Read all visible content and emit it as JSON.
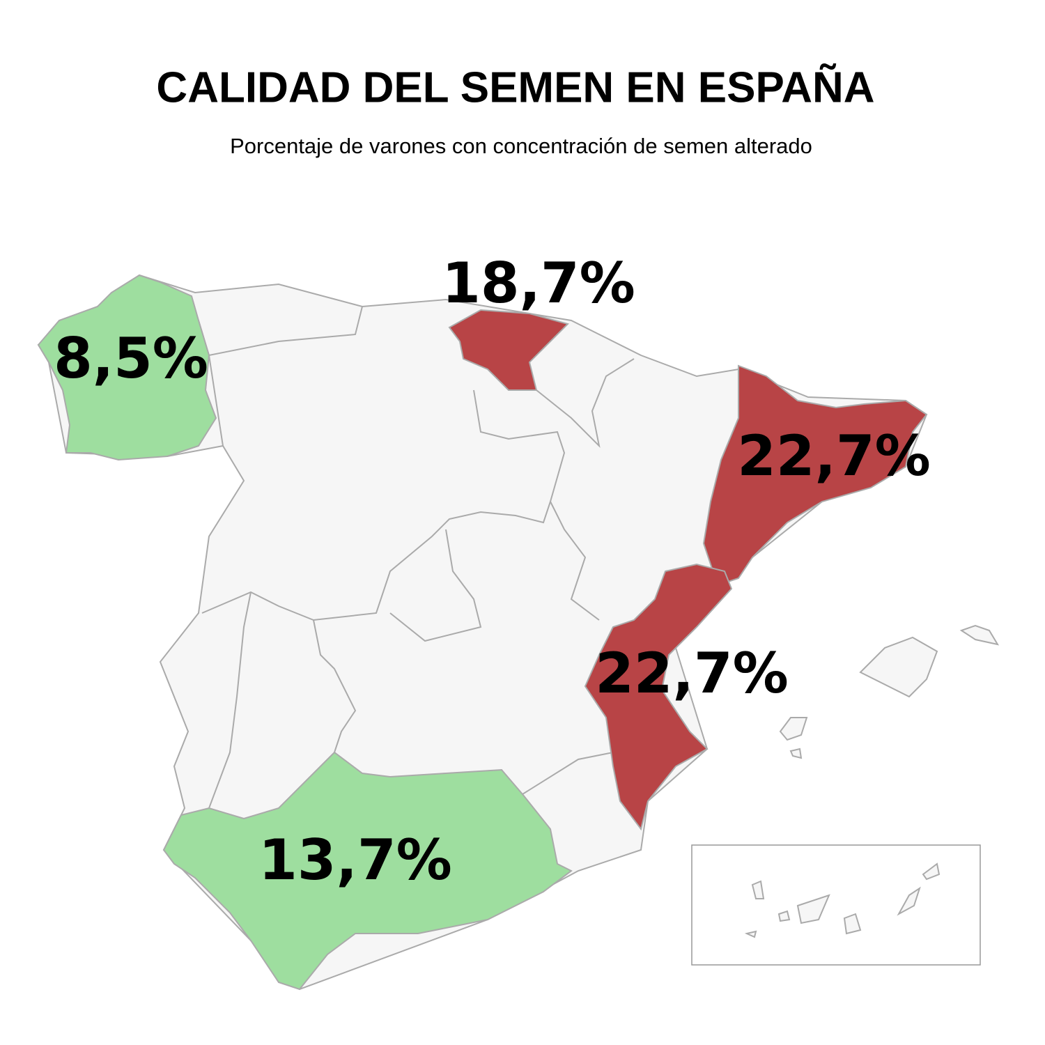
{
  "chart_data": {
    "type": "map",
    "title": "CALIDAD DEL SEMEN EN ESPAÑA",
    "subtitle": "Porcentaje de varones con concentración de semen alterado",
    "values": [
      8.5,
      18.7,
      22.7,
      22.7,
      13.7
    ],
    "value_labels": [
      "8,5%",
      "18,7%",
      "22,7%",
      "22,7%",
      "13,7%"
    ],
    "colors": [
      "#9ede9f",
      "#b84446",
      "#b84446",
      "#b84446",
      "#9ede9f"
    ]
  }
}
